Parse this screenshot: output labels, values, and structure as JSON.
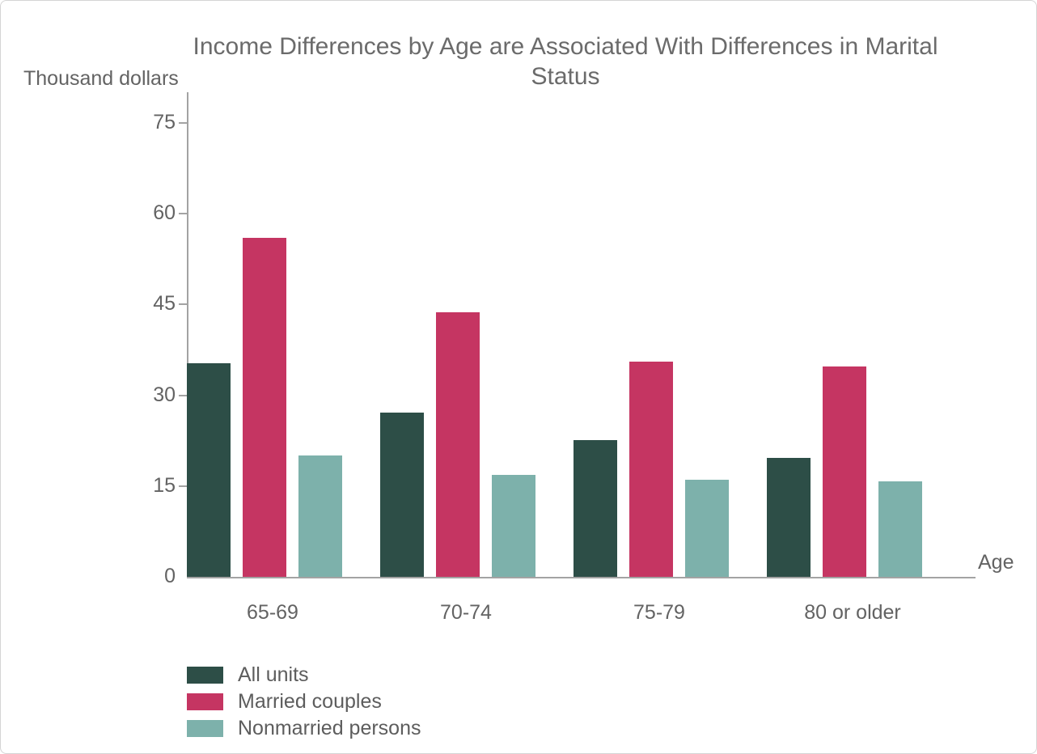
{
  "title": "Income Differences by Age are Associated With Differences in Marital Status",
  "y_axis_unit_label": "Thousand dollars",
  "x_axis_title": "Age",
  "colors": {
    "all_units": "#2d4e47",
    "married_couples": "#c53562",
    "nonmarried_persons": "#7db1ab",
    "axis": "#a3a3a3",
    "text": "#636363",
    "title_text": "#6b6b6b",
    "canvas_border": "#d4d4d4"
  },
  "chart_data": {
    "type": "bar",
    "title": "Income Differences by Age are Associated With Differences in Marital Status",
    "xlabel": "Age",
    "ylabel": "Thousand dollars",
    "categories": [
      "65-69",
      "70-74",
      "75-79",
      "80 or older"
    ],
    "series": [
      {
        "name": "All units",
        "color": "#2d4e47",
        "values": [
          35.3,
          27.2,
          22.6,
          19.6
        ]
      },
      {
        "name": "Married couples",
        "color": "#c53562",
        "values": [
          56.0,
          43.7,
          35.6,
          34.7
        ]
      },
      {
        "name": "Nonmarried persons",
        "color": "#7db1ab",
        "values": [
          20.1,
          16.9,
          16.1,
          15.8
        ]
      }
    ],
    "ylim": [
      0,
      80
    ],
    "yticks": [
      0,
      15,
      30,
      45,
      60,
      75
    ],
    "grid": false,
    "legend_position": "bottom-left"
  },
  "legend": {
    "items": [
      {
        "label": "All units",
        "color": "#2d4e47"
      },
      {
        "label": "Married couples",
        "color": "#c53562"
      },
      {
        "label": "Nonmarried persons",
        "color": "#7db1ab"
      }
    ]
  }
}
